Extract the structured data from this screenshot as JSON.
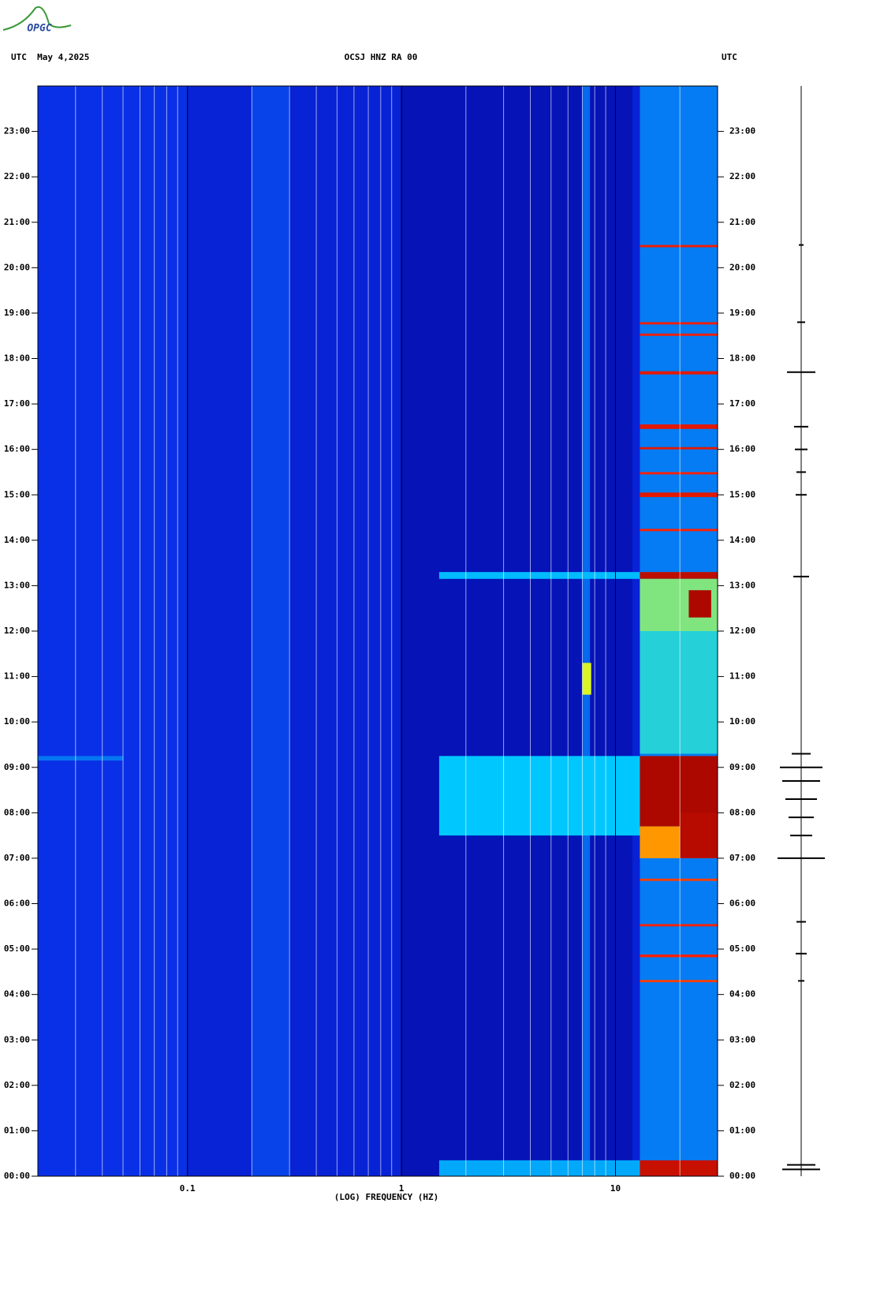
{
  "logo": "OPGC",
  "chart_data": {
    "type": "spectrogram",
    "title": "OCSJ HNZ RA 00",
    "left_header": "UTC  May 4,2025",
    "right_header": "UTC",
    "x_label": "(LOG) FREQUENCY (HZ)",
    "x_log": true,
    "xlim": [
      0.02,
      30
    ],
    "xticks": [
      0.1,
      1,
      10
    ],
    "minor_xticks": [
      0.03,
      0.04,
      0.05,
      0.06,
      0.07,
      0.08,
      0.09,
      0.2,
      0.3,
      0.4,
      0.5,
      0.6,
      0.7,
      0.8,
      0.9,
      2,
      3,
      4,
      5,
      6,
      7,
      8,
      9,
      20
    ],
    "ylim": [
      0,
      24
    ],
    "yticks": [
      {
        "value": 0,
        "label": "00:00"
      },
      {
        "value": 1,
        "label": "01:00"
      },
      {
        "value": 2,
        "label": "02:00"
      },
      {
        "value": 3,
        "label": "03:00"
      },
      {
        "value": 4,
        "label": "04:00"
      },
      {
        "value": 5,
        "label": "05:00"
      },
      {
        "value": 6,
        "label": "06:00"
      },
      {
        "value": 7,
        "label": "07:00"
      },
      {
        "value": 8,
        "label": "08:00"
      },
      {
        "value": 9,
        "label": "09:00"
      },
      {
        "value": 10,
        "label": "10:00"
      },
      {
        "value": 11,
        "label": "11:00"
      },
      {
        "value": 12,
        "label": "12:00"
      },
      {
        "value": 13,
        "label": "13:00"
      },
      {
        "value": 14,
        "label": "14:00"
      },
      {
        "value": 15,
        "label": "15:00"
      },
      {
        "value": 16,
        "label": "16:00"
      },
      {
        "value": 17,
        "label": "17:00"
      },
      {
        "value": 18,
        "label": "18:00"
      },
      {
        "value": 19,
        "label": "19:00"
      },
      {
        "value": 20,
        "label": "20:00"
      },
      {
        "value": 21,
        "label": "21:00"
      },
      {
        "value": 22,
        "label": "22:00"
      },
      {
        "value": 23,
        "label": "23:00"
      }
    ],
    "colormap": [
      {
        "level": 0,
        "color": "#000090"
      },
      {
        "level": 0.2,
        "color": "#0a2ae6"
      },
      {
        "level": 0.45,
        "color": "#00c8ff"
      },
      {
        "level": 0.65,
        "color": "#ffff00"
      },
      {
        "level": 0.8,
        "color": "#ff2000"
      },
      {
        "level": 1,
        "color": "#900000"
      }
    ],
    "bands": [
      {
        "t0": 0,
        "t1": 24,
        "f0": 0.02,
        "f1": 30,
        "level": 0.16
      },
      {
        "t0": 0,
        "t1": 24,
        "f0": 0.02,
        "f1": 0.1,
        "level": 0.21
      },
      {
        "t0": 0,
        "t1": 24,
        "f0": 0.2,
        "f1": 0.3,
        "level": 0.24
      },
      {
        "t0": 0,
        "t1": 24,
        "f0": 1,
        "f1": 12,
        "level": 0.09
      },
      {
        "t0": 0,
        "t1": 24,
        "f0": 13,
        "f1": 30,
        "level": 0.33
      },
      {
        "t0": 0,
        "t1": 24,
        "f0": 7,
        "f1": 7.6,
        "level": 0.3
      },
      {
        "t0": 9.15,
        "t1": 9.25,
        "f0": 0.02,
        "f1": 0.05,
        "level": 0.32
      },
      {
        "t0": 7.5,
        "t1": 9.25,
        "f0": 1.5,
        "f1": 30,
        "level": 0.45
      },
      {
        "t0": 7.7,
        "t1": 9.25,
        "f0": 13,
        "f1": 30,
        "level": 0.95
      },
      {
        "t0": 7.0,
        "t1": 7.7,
        "f0": 13,
        "f1": 30,
        "level": 0.72
      },
      {
        "t0": 7.0,
        "t1": 8.0,
        "f0": 20,
        "f1": 30,
        "level": 0.93
      },
      {
        "t0": 13.15,
        "t1": 13.3,
        "f0": 1.5,
        "f1": 30,
        "level": 0.43
      },
      {
        "t0": 13.15,
        "t1": 13.3,
        "f0": 13,
        "f1": 30,
        "level": 0.92
      },
      {
        "t0": 12.0,
        "t1": 13.15,
        "f0": 13,
        "f1": 30,
        "level": 0.55
      },
      {
        "t0": 12.3,
        "t1": 12.9,
        "f0": 22,
        "f1": 28,
        "level": 0.95
      },
      {
        "t0": 9.3,
        "t1": 12.0,
        "f0": 13,
        "f1": 30,
        "level": 0.48
      },
      {
        "t0": 10.6,
        "t1": 11.3,
        "f0": 7,
        "f1": 7.7,
        "level": 0.62
      },
      {
        "t0": 0,
        "t1": 0.35,
        "f0": 1.5,
        "f1": 30,
        "level": 0.4
      },
      {
        "t0": 0,
        "t1": 0.35,
        "f0": 13,
        "f1": 30,
        "level": 0.9
      },
      {
        "t0": 14.2,
        "t1": 14.25,
        "f0": 13,
        "f1": 30,
        "level": 0.8
      },
      {
        "t0": 14.95,
        "t1": 15.05,
        "f0": 13,
        "f1": 30,
        "level": 0.85
      },
      {
        "t0": 15.45,
        "t1": 15.5,
        "f0": 13,
        "f1": 30,
        "level": 0.8
      },
      {
        "t0": 16.0,
        "t1": 16.05,
        "f0": 13,
        "f1": 30,
        "level": 0.85
      },
      {
        "t0": 16.45,
        "t1": 16.55,
        "f0": 13,
        "f1": 30,
        "level": 0.85
      },
      {
        "t0": 17.65,
        "t1": 17.72,
        "f0": 13,
        "f1": 30,
        "level": 0.85
      },
      {
        "t0": 18.5,
        "t1": 18.55,
        "f0": 13,
        "f1": 30,
        "level": 0.82
      },
      {
        "t0": 18.75,
        "t1": 18.8,
        "f0": 13,
        "f1": 30,
        "level": 0.82
      },
      {
        "t0": 20.45,
        "t1": 20.5,
        "f0": 13,
        "f1": 30,
        "level": 0.82
      },
      {
        "t0": 6.5,
        "t1": 6.55,
        "f0": 13,
        "f1": 30,
        "level": 0.78
      },
      {
        "t0": 5.5,
        "t1": 5.55,
        "f0": 13,
        "f1": 30,
        "level": 0.8
      },
      {
        "t0": 4.82,
        "t1": 4.88,
        "f0": 13,
        "f1": 30,
        "level": 0.8
      },
      {
        "t0": 4.27,
        "t1": 4.32,
        "f0": 13,
        "f1": 30,
        "level": 0.78
      }
    ],
    "trace": {
      "times": [
        0.15,
        0.25,
        4.3,
        4.9,
        5.6,
        7.0,
        7.5,
        7.9,
        8.3,
        8.7,
        9.0,
        9.3,
        13.2,
        15.0,
        15.5,
        16.0,
        16.5,
        17.7,
        18.8,
        20.5
      ],
      "amps": [
        24,
        18,
        4,
        7,
        6,
        30,
        14,
        16,
        20,
        24,
        27,
        12,
        10,
        7,
        6,
        8,
        9,
        18,
        5,
        3
      ]
    }
  }
}
